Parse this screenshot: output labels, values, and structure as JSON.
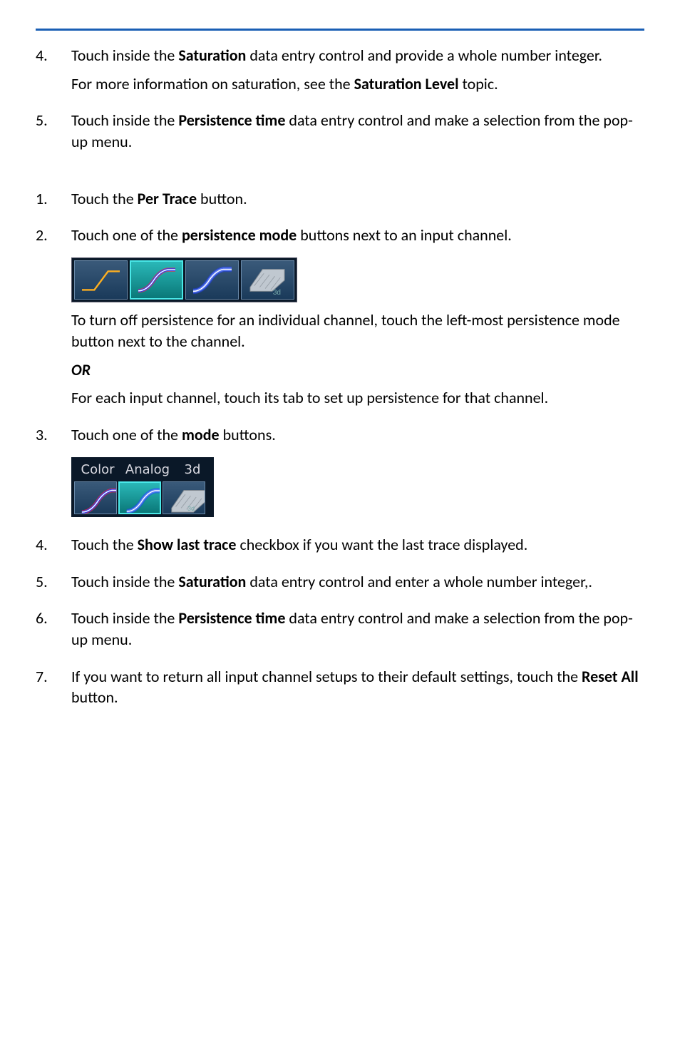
{
  "rule": {
    "color": "#1a5fb4"
  },
  "groupA": [
    {
      "num": "4.",
      "paragraphs": [
        {
          "segments": [
            {
              "t": "Touch inside the "
            },
            {
              "t": "Saturation",
              "bold": true
            },
            {
              "t": " data entry control and provide a whole number integer."
            }
          ]
        },
        {
          "segments": [
            {
              "t": "For more information on saturation, see the "
            },
            {
              "t": "Saturation Level",
              "bold": true
            },
            {
              "t": " topic."
            }
          ]
        }
      ]
    },
    {
      "num": "5.",
      "paragraphs": [
        {
          "segments": [
            {
              "t": "Touch inside the "
            },
            {
              "t": "Persistence time",
              "bold": true
            },
            {
              "t": " data entry control and make a selection from the pop-up menu."
            }
          ]
        }
      ]
    }
  ],
  "groupB": [
    {
      "num": "1.",
      "paragraphs": [
        {
          "segments": [
            {
              "t": "Touch the "
            },
            {
              "t": "Per Trace",
              "bold": true
            },
            {
              "t": " button."
            }
          ]
        }
      ]
    },
    {
      "num": "2.",
      "paragraphs": [
        {
          "segments": [
            {
              "t": "Touch one of the "
            },
            {
              "t": "persistence mode",
              "bold": true
            },
            {
              "t": " buttons next to an input channel."
            }
          ]
        }
      ],
      "afterStrip": true,
      "post": [
        {
          "segments": [
            {
              "t": "To turn off persistence for an individual channel, touch the left-most persistence mode button next to the channel."
            }
          ]
        },
        {
          "segments": [
            {
              "t": "OR",
              "ib": true
            }
          ]
        },
        {
          "segments": [
            {
              "t": "For each input channel, touch its tab to set up persistence for that channel."
            }
          ]
        }
      ]
    },
    {
      "num": "3.",
      "paragraphs": [
        {
          "segments": [
            {
              "t": "Touch one of the "
            },
            {
              "t": "mode",
              "bold": true
            },
            {
              "t": " buttons."
            }
          ]
        }
      ],
      "afterLabeled": true
    },
    {
      "num": "4.",
      "paragraphs": [
        {
          "segments": [
            {
              "t": "Touch the "
            },
            {
              "t": "Show last trace",
              "bold": true
            },
            {
              "t": " checkbox if you want the last trace displayed."
            }
          ]
        }
      ]
    },
    {
      "num": "5.",
      "paragraphs": [
        {
          "segments": [
            {
              "t": "Touch inside the "
            },
            {
              "t": "Saturation",
              "bold": true
            },
            {
              "t": " data entry control and enter a whole number integer,."
            }
          ]
        }
      ]
    },
    {
      "num": "6.",
      "paragraphs": [
        {
          "segments": [
            {
              "t": "Touch inside the "
            },
            {
              "t": "Persistence time",
              "bold": true
            },
            {
              "t": " data entry control and make a selection from the pop-up menu."
            }
          ]
        }
      ]
    },
    {
      "num": "7.",
      "paragraphs": [
        {
          "segments": [
            {
              "t": "If you want to return all input channel setups to their default settings, touch the "
            },
            {
              "t": "Reset All",
              "bold": true
            },
            {
              "t": " button."
            }
          ]
        }
      ]
    }
  ],
  "strip1": {
    "buttons": [
      {
        "type": "simple",
        "selected": false
      },
      {
        "type": "color-persist",
        "selected": true
      },
      {
        "type": "analog-persist",
        "selected": false
      },
      {
        "type": "3d",
        "selected": false,
        "label": "3d"
      }
    ]
  },
  "labeledStrip": {
    "labels": [
      "Color",
      "Analog",
      "3d"
    ],
    "buttons": [
      {
        "type": "color-persist",
        "selected": false
      },
      {
        "type": "analog-persist",
        "selected": true
      },
      {
        "type": "3d",
        "selected": false,
        "label": "3d"
      }
    ]
  }
}
